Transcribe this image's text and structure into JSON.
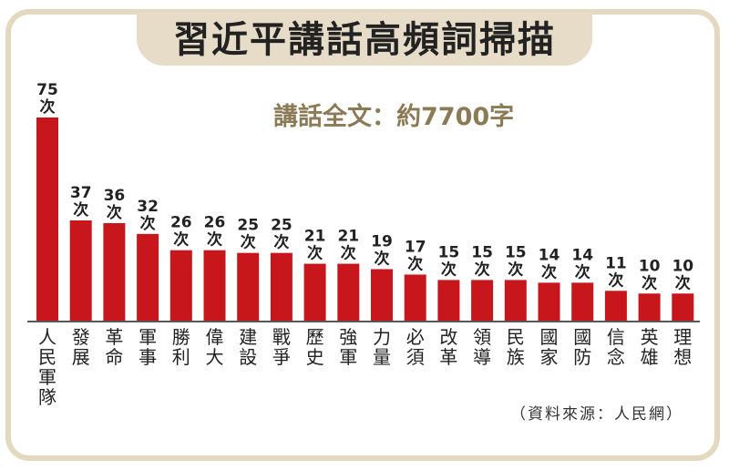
{
  "title": "習近平講話高頻詞掃描",
  "subtitle": "講話全文：約7700字",
  "source": "（資料來源：人民網）",
  "colors": {
    "bar": "#c8161d",
    "banner": "#e7dcc7",
    "frame": "#e4d8c0",
    "subtitle": "#8b7a55"
  },
  "chart_data": {
    "type": "bar",
    "unit": "次",
    "categories": [
      "人民軍隊",
      "發展",
      "革命",
      "軍事",
      "勝利",
      "偉大",
      "建設",
      "戰爭",
      "歷史",
      "強軍",
      "力量",
      "必須",
      "改革",
      "領導",
      "民族",
      "國家",
      "國防",
      "信念",
      "英雄",
      "理想"
    ],
    "values": [
      75,
      37,
      36,
      32,
      26,
      26,
      25,
      25,
      21,
      21,
      19,
      17,
      15,
      15,
      15,
      14,
      14,
      11,
      10,
      10
    ],
    "ylim": [
      0,
      75
    ],
    "grid": false,
    "legend": "none"
  }
}
